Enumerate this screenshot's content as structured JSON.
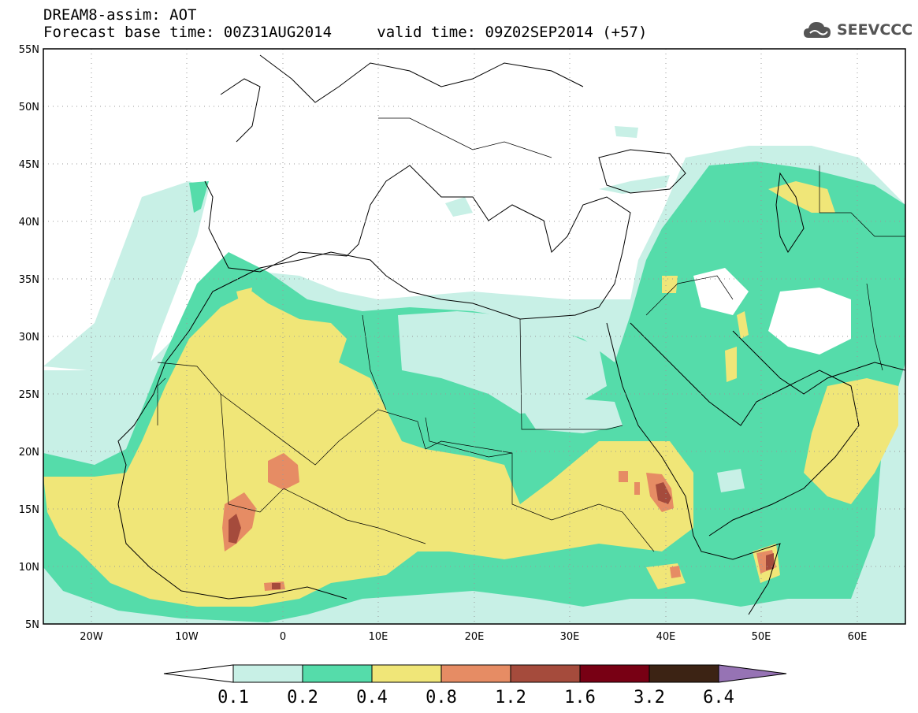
{
  "title": {
    "line1": "DREAM8-assim: AOT",
    "line2_base": "Forecast base time: 00Z31AUG2014",
    "line2_valid": "valid time: 09Z02SEP2014 (+57)"
  },
  "logo": {
    "text": "SEEVCCC",
    "icon": "cloud-icon"
  },
  "map": {
    "projection": "lat-lon",
    "lon_range": [
      -25,
      65
    ],
    "lat_range": [
      5,
      55
    ],
    "lon_ticks": [
      "20W",
      "10W",
      "0",
      "10E",
      "20E",
      "30E",
      "40E",
      "50E",
      "60E"
    ],
    "lat_ticks": [
      "5N",
      "10N",
      "15N",
      "20N",
      "25N",
      "30N",
      "35N",
      "40N",
      "45N",
      "50N",
      "55N"
    ],
    "grid": "dotted"
  },
  "legend": {
    "levels": [
      "0.1",
      "0.2",
      "0.4",
      "0.8",
      "1.2",
      "1.6",
      "3.2",
      "6.4"
    ],
    "colors": [
      "#ffffff",
      "#c8f0e6",
      "#55dcaa",
      "#f0e678",
      "#e68c64",
      "#a54b3c",
      "#780014",
      "#3c2314",
      "#9673b4"
    ]
  }
}
